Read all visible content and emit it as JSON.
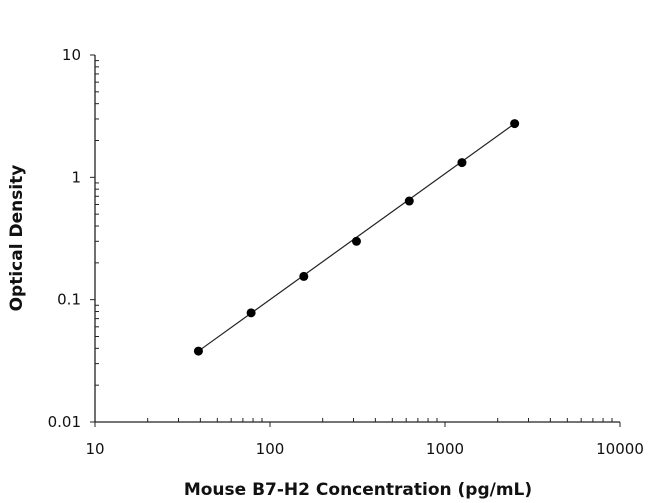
{
  "chart_data": {
    "type": "scatter",
    "title": "",
    "xlabel": "Mouse B7-H2 Concentration (pg/mL)",
    "ylabel": "Optical Density",
    "xscale": "log",
    "yscale": "log",
    "xlim": [
      10,
      10000
    ],
    "ylim": [
      0.01,
      10
    ],
    "xticks": [
      "10",
      "100",
      "1000",
      "10000"
    ],
    "yticks": [
      "0.01",
      "0.1",
      "1",
      "10"
    ],
    "grid": false,
    "legend": "none",
    "fit_line": true,
    "marker_color": "#000000",
    "series": [
      {
        "x": [
          39,
          78,
          156,
          312,
          625,
          1250,
          2500
        ],
        "y": [
          0.038,
          0.078,
          0.155,
          0.3,
          0.64,
          1.32,
          2.75
        ]
      }
    ]
  }
}
